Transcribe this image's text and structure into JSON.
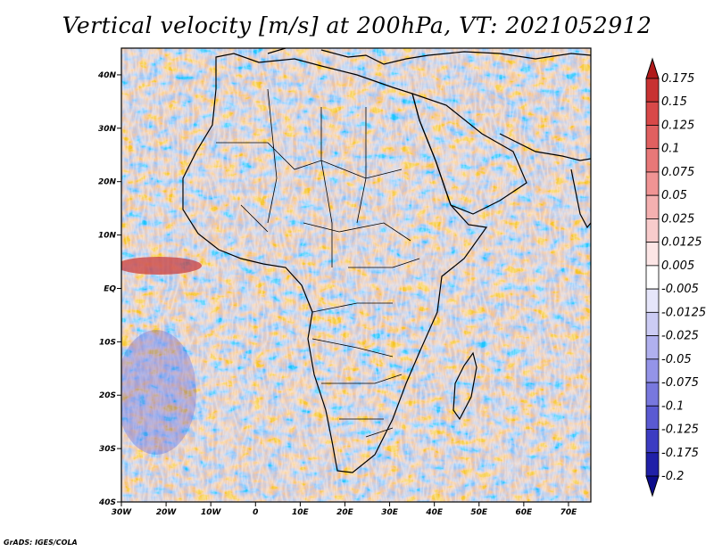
{
  "title": "Vertical velocity [m/s] at 200hPa, VT: 2021052912",
  "credit": "GrADS: IGES/COLA",
  "map": {
    "lon_range": [
      -30,
      75
    ],
    "lat_range": [
      -40,
      45
    ],
    "lat_labels": [
      "40N",
      "30N",
      "20N",
      "10N",
      "EQ",
      "10S",
      "20S",
      "30S",
      "40S"
    ],
    "lon_labels": [
      "30W",
      "20W",
      "10W",
      "0",
      "10E",
      "20E",
      "30E",
      "40E",
      "50E",
      "60E",
      "70E"
    ]
  },
  "colorbar": {
    "levels": [
      "0.175",
      "0.15",
      "0.125",
      "0.1",
      "0.075",
      "0.05",
      "0.025",
      "0.0125",
      "0.005",
      "-0.005",
      "-0.0125",
      "-0.025",
      "-0.05",
      "-0.075",
      "-0.1",
      "-0.125",
      "-0.175",
      "-0.2"
    ],
    "colors": [
      "#b01a1a",
      "#c83232",
      "#d84848",
      "#e06060",
      "#e87878",
      "#f09494",
      "#f4b0b0",
      "#f8cccc",
      "#fce6e6",
      "#ffffff",
      "#e6e6fa",
      "#ccccf4",
      "#b0b0ee",
      "#9494e8",
      "#7878de",
      "#5a5ad2",
      "#3c3cc2",
      "#2020a8",
      "#0c0c8c"
    ]
  }
}
